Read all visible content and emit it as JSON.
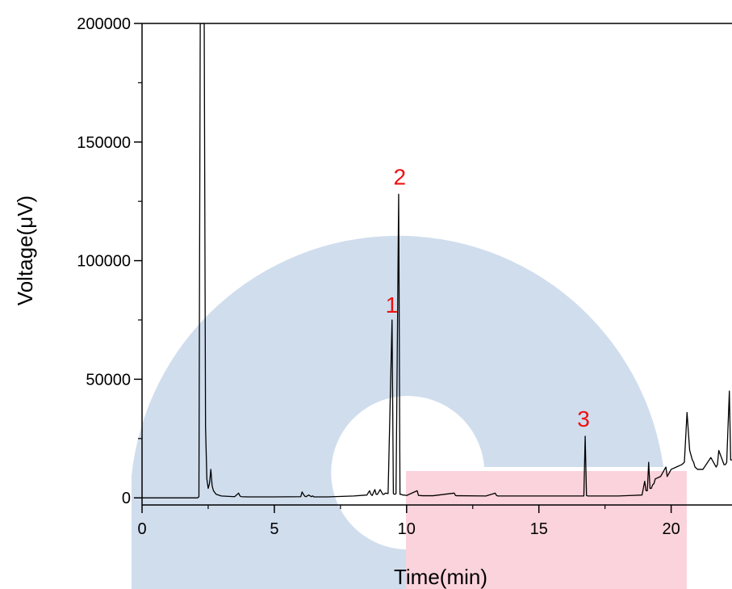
{
  "chart_data": {
    "type": "line",
    "title": "",
    "xlabel": "Time(min)",
    "ylabel": "Voltage(μV)",
    "xlim": [
      0,
      22.3
    ],
    "ylim": [
      -3000,
      200000
    ],
    "x_ticks": [
      0,
      5,
      10,
      15,
      20
    ],
    "x_tick_labels": [
      "0",
      "5",
      "10",
      "15",
      "20"
    ],
    "y_ticks": [
      0,
      50000,
      100000,
      150000,
      200000
    ],
    "y_tick_labels": [
      "0",
      "50000",
      "100000",
      "150000",
      "200000"
    ],
    "grid": false,
    "legend": "none",
    "line_color": "#000000",
    "label_color": "#ee1111",
    "series": [
      {
        "x": [
          0,
          1.0,
          2.0,
          2.1,
          2.15,
          2.2,
          2.3,
          2.35,
          2.4,
          2.45,
          2.5,
          2.55,
          2.6,
          2.65,
          2.7,
          2.8,
          3.0,
          3.5,
          3.65,
          3.7,
          3.75,
          4.0,
          5.0,
          6.0,
          6.05,
          6.1,
          6.15,
          6.2,
          6.3,
          6.4,
          6.45,
          6.5,
          6.6,
          7.0,
          8.0,
          8.5,
          8.6,
          8.65,
          8.7,
          8.8,
          8.85,
          8.9,
          9.0,
          9.1,
          9.15,
          9.2,
          9.3,
          9.45,
          9.5,
          9.55,
          9.6,
          9.7,
          9.75,
          9.8,
          9.85,
          9.9,
          10.0,
          10.4,
          10.45,
          10.5,
          10.6,
          11.0,
          11.8,
          11.85,
          11.9,
          12.0,
          13.0,
          13.35,
          13.4,
          13.45,
          13.6,
          14.0,
          15.0,
          16.0,
          16.7,
          16.75,
          16.8,
          16.85,
          16.9,
          17.0,
          17.5,
          18.0,
          18.5,
          18.9,
          19.0,
          19.05,
          19.1,
          19.15,
          19.2,
          19.25,
          19.3,
          19.35,
          19.4,
          19.6,
          19.8,
          19.85,
          19.9,
          19.95,
          20.0,
          20.2,
          20.4,
          20.5,
          20.6,
          20.7,
          20.8,
          20.85,
          20.9,
          21.0,
          21.2,
          21.5,
          21.7,
          21.75,
          21.8,
          22.0,
          22.05,
          22.1,
          22.2,
          22.25,
          22.3
        ],
        "y": [
          0,
          0,
          0,
          0,
          500,
          200000,
          200000,
          200000,
          30000,
          8000,
          4000,
          6000,
          12000,
          5000,
          3000,
          1500,
          800,
          500,
          2000,
          800,
          500,
          400,
          400,
          500,
          2500,
          1500,
          700,
          500,
          1200,
          500,
          800,
          400,
          400,
          400,
          800,
          1200,
          3000,
          1500,
          1000,
          3500,
          1500,
          1500,
          3500,
          1500,
          1500,
          2000,
          1800,
          75000,
          1800,
          1500,
          1800,
          128000,
          1500,
          1500,
          1200,
          1200,
          1000,
          3000,
          1000,
          1000,
          900,
          900,
          2000,
          1000,
          900,
          900,
          800,
          2000,
          1000,
          800,
          800,
          800,
          800,
          800,
          800,
          26000,
          1000,
          800,
          800,
          800,
          800,
          800,
          1000,
          1200,
          7000,
          3000,
          3000,
          15000,
          4000,
          4000,
          5500,
          6000,
          8000,
          9000,
          13000,
          9000,
          10000,
          11000,
          12000,
          13000,
          14000,
          15000,
          36000,
          20000,
          16000,
          15000,
          13000,
          12000,
          12000,
          17000,
          13000,
          14000,
          20000,
          14000,
          14000,
          15000,
          45000,
          16000,
          16000
        ]
      }
    ],
    "annotations": [
      {
        "text": "1",
        "x": 9.5,
        "y": 76000
      },
      {
        "text": "2",
        "x": 9.8,
        "y": 130000
      },
      {
        "text": "3",
        "x": 16.75,
        "y": 28000
      }
    ]
  }
}
